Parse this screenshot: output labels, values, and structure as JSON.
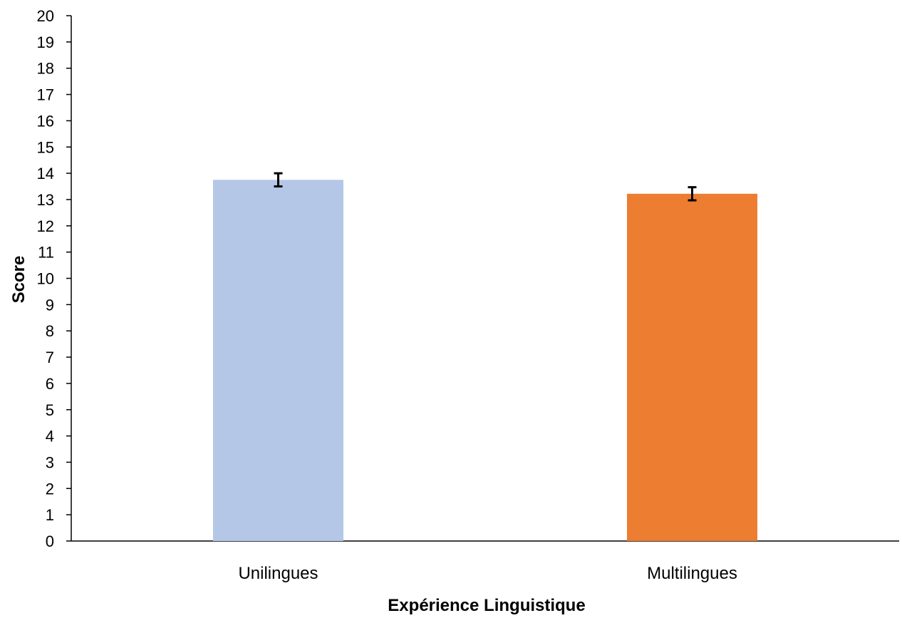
{
  "chart_data": {
    "type": "bar",
    "categories": [
      "Unilingues",
      "Multilingues"
    ],
    "values": [
      13.75,
      13.22
    ],
    "error": [
      0.25,
      0.25
    ],
    "colors": [
      "#B4C7E7",
      "#ED7D31"
    ],
    "xlabel": "Expérience Linguistique",
    "ylabel": "Score",
    "ylim": [
      0,
      20
    ],
    "yticks": [
      "0",
      "1",
      "2",
      "3",
      "4",
      "5",
      "6",
      "7",
      "8",
      "9",
      "10",
      "11",
      "12",
      "13",
      "14",
      "15",
      "16",
      "17",
      "18",
      "19",
      "20"
    ],
    "grid": false,
    "legend": "none"
  }
}
